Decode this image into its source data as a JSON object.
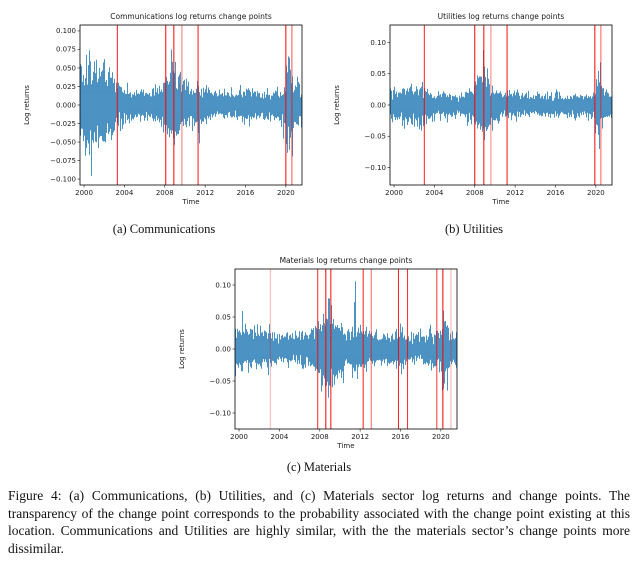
{
  "figure": {
    "caption": "Figure 4: (a) Communications, (b) Utilities, and (c) Materials sector log returns and change points. The transparency of the change point corresponds to the probability associated with the change point existing at this location. Communications and Utilities are highly similar, with the the materials sector’s change points more dissimilar.",
    "subcaptions": {
      "a": "(a) Communications",
      "b": "(b) Utilities",
      "c": "(c) Materials"
    }
  },
  "colors": {
    "series_line": "#1f77b4",
    "change_point": "#ff0000",
    "axis_text": "#1a1a1a",
    "axis_frame": "#000000"
  },
  "chart_data": [
    {
      "type": "line",
      "id": "communications",
      "title": "Communications log returns change points",
      "xlabel": "Time",
      "ylabel": "Log returns",
      "series_name": "log returns",
      "x_range": [
        1999.6,
        2021.6
      ],
      "y_range": [
        -0.108,
        0.108
      ],
      "x_tick_values": [
        2000,
        2004,
        2008,
        2012,
        2016,
        2020
      ],
      "x_tick_labels": [
        "2000",
        "2004",
        "2008",
        "2012",
        "2016",
        "2020"
      ],
      "y_tick_values": [
        0.1,
        0.075,
        0.05,
        0.025,
        0.0,
        -0.025,
        -0.05,
        -0.075,
        -0.1
      ],
      "y_tick_labels": [
        "0.100",
        "0.075",
        "0.050",
        "0.025",
        "0.000",
        "−0.025",
        "−0.050",
        "−0.075",
        "−0.100"
      ],
      "points_per_year": 252,
      "seed": 7,
      "volatility_profile": [
        [
          1999.6,
          0.02
        ],
        [
          2000.5,
          0.023
        ],
        [
          2001.5,
          0.022
        ],
        [
          2002.8,
          0.019
        ],
        [
          2003.5,
          0.012
        ],
        [
          2004.5,
          0.008
        ],
        [
          2006.5,
          0.007
        ],
        [
          2007.8,
          0.012
        ],
        [
          2008.8,
          0.027
        ],
        [
          2009.6,
          0.016
        ],
        [
          2010.5,
          0.01
        ],
        [
          2011.6,
          0.013
        ],
        [
          2012.5,
          0.008
        ],
        [
          2014.5,
          0.007
        ],
        [
          2016.0,
          0.009
        ],
        [
          2018.0,
          0.008
        ],
        [
          2019.0,
          0.009
        ],
        [
          2019.9,
          0.01
        ],
        [
          2020.3,
          0.028
        ],
        [
          2020.9,
          0.012
        ],
        [
          2021.6,
          0.009
        ]
      ],
      "change_points": [
        {
          "year": 2003.3,
          "probability": 0.9
        },
        {
          "year": 2008.1,
          "probability": 1.0
        },
        {
          "year": 2008.9,
          "probability": 1.0
        },
        {
          "year": 2009.7,
          "probability": 0.55
        },
        {
          "year": 2011.3,
          "probability": 0.95
        },
        {
          "year": 2020.0,
          "probability": 1.0
        },
        {
          "year": 2020.6,
          "probability": 0.7
        }
      ]
    },
    {
      "type": "line",
      "id": "utilities",
      "title": "Utilities log returns change points",
      "xlabel": "Time",
      "ylabel": "Log returns",
      "series_name": "log returns",
      "x_range": [
        1999.6,
        2021.6
      ],
      "y_range": [
        -0.128,
        0.128
      ],
      "x_tick_values": [
        2000,
        2004,
        2008,
        2012,
        2016,
        2020
      ],
      "x_tick_labels": [
        "2000",
        "2004",
        "2008",
        "2012",
        "2016",
        "2020"
      ],
      "y_tick_values": [
        0.1,
        0.05,
        0.0,
        -0.05,
        -0.1
      ],
      "y_tick_labels": [
        "0.10",
        "0.05",
        "0.00",
        "−0.05",
        "−0.10"
      ],
      "points_per_year": 252,
      "seed": 13,
      "volatility_profile": [
        [
          1999.6,
          0.011
        ],
        [
          2001.0,
          0.012
        ],
        [
          2002.9,
          0.014
        ],
        [
          2004.0,
          0.008
        ],
        [
          2006.5,
          0.007
        ],
        [
          2007.8,
          0.011
        ],
        [
          2008.8,
          0.026
        ],
        [
          2009.6,
          0.014
        ],
        [
          2010.5,
          0.008
        ],
        [
          2011.6,
          0.01
        ],
        [
          2013.0,
          0.007
        ],
        [
          2015.5,
          0.008
        ],
        [
          2018.0,
          0.007
        ],
        [
          2019.9,
          0.009
        ],
        [
          2020.3,
          0.027
        ],
        [
          2020.9,
          0.011
        ],
        [
          2021.6,
          0.008
        ]
      ],
      "change_points": [
        {
          "year": 2003.0,
          "probability": 0.9
        },
        {
          "year": 2008.0,
          "probability": 1.0
        },
        {
          "year": 2008.9,
          "probability": 1.0
        },
        {
          "year": 2009.6,
          "probability": 0.5
        },
        {
          "year": 2011.2,
          "probability": 0.95
        },
        {
          "year": 2019.9,
          "probability": 1.0
        },
        {
          "year": 2020.5,
          "probability": 0.65
        }
      ]
    },
    {
      "type": "line",
      "id": "materials",
      "title": "Materials log returns change points",
      "xlabel": "Time",
      "ylabel": "Log returns",
      "series_name": "log returns",
      "x_range": [
        1999.6,
        2021.6
      ],
      "y_range": [
        -0.125,
        0.125
      ],
      "x_tick_values": [
        2000,
        2004,
        2008,
        2012,
        2016,
        2020
      ],
      "x_tick_labels": [
        "2000",
        "2004",
        "2008",
        "2012",
        "2016",
        "2020"
      ],
      "y_tick_values": [
        0.1,
        0.05,
        0.0,
        -0.05,
        -0.1
      ],
      "y_tick_labels": [
        "0.10",
        "0.05",
        "0.00",
        "−0.05",
        "−0.10"
      ],
      "points_per_year": 252,
      "seed": 42,
      "volatility_profile": [
        [
          1999.6,
          0.013
        ],
        [
          2001.0,
          0.014
        ],
        [
          2002.9,
          0.013
        ],
        [
          2004.0,
          0.01
        ],
        [
          2006.0,
          0.01
        ],
        [
          2007.5,
          0.013
        ],
        [
          2008.8,
          0.03
        ],
        [
          2009.6,
          0.019
        ],
        [
          2010.5,
          0.012
        ],
        [
          2011.7,
          0.015
        ],
        [
          2013.0,
          0.01
        ],
        [
          2015.0,
          0.01
        ],
        [
          2016.0,
          0.013
        ],
        [
          2017.0,
          0.008
        ],
        [
          2018.9,
          0.011
        ],
        [
          2019.9,
          0.012
        ],
        [
          2020.3,
          0.026
        ],
        [
          2020.9,
          0.012
        ],
        [
          2021.6,
          0.01
        ]
      ],
      "change_points": [
        {
          "year": 2003.1,
          "probability": 0.3
        },
        {
          "year": 2007.8,
          "probability": 0.85
        },
        {
          "year": 2008.6,
          "probability": 1.0
        },
        {
          "year": 2009.1,
          "probability": 0.95
        },
        {
          "year": 2012.3,
          "probability": 0.9
        },
        {
          "year": 2013.1,
          "probability": 0.6
        },
        {
          "year": 2015.8,
          "probability": 0.9
        },
        {
          "year": 2016.7,
          "probability": 0.85
        },
        {
          "year": 2019.6,
          "probability": 0.8
        },
        {
          "year": 2020.2,
          "probability": 1.0
        },
        {
          "year": 2021.0,
          "probability": 0.35
        }
      ]
    }
  ]
}
